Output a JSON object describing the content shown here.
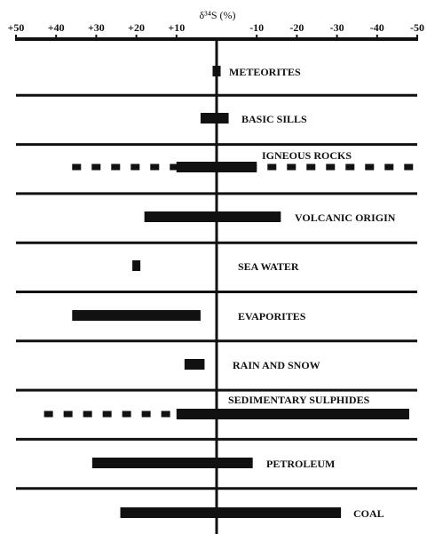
{
  "chart_data": {
    "type": "range",
    "title": "δ³⁴S (%)",
    "xlim": [
      50,
      -50
    ],
    "xticks": [
      {
        "value": 50,
        "label": "+50"
      },
      {
        "value": 40,
        "label": "+40"
      },
      {
        "value": 30,
        "label": "+30"
      },
      {
        "value": 20,
        "label": "+20"
      },
      {
        "value": 10,
        "label": "+10"
      },
      -10,
      -20,
      -30,
      -40,
      -50
    ],
    "categories": [
      "METEORITES",
      "BASIC SILLS",
      "IGNEOUS ROCKS",
      "VOLCANIC ORIGIN",
      "SEA WATER",
      "EVAPORITES",
      "RAIN AND SNOW",
      "SEDIMENTARY SULPHIDES",
      "PETROLEUM",
      "COAL"
    ],
    "ranges": [
      [
        1,
        -1
      ],
      [
        4,
        -3
      ],
      [
        10,
        -10
      ],
      [
        18,
        -16
      ],
      [
        21,
        19
      ],
      [
        36,
        4
      ],
      [
        8,
        3
      ],
      [
        10,
        -48
      ],
      [
        31,
        -9
      ],
      [
        24,
        -31
      ]
    ],
    "dashed_ranges": [
      null,
      null,
      [
        36,
        -50
      ],
      null,
      null,
      null,
      null,
      [
        43,
        10
      ],
      null,
      null
    ],
    "color": "#111111"
  }
}
